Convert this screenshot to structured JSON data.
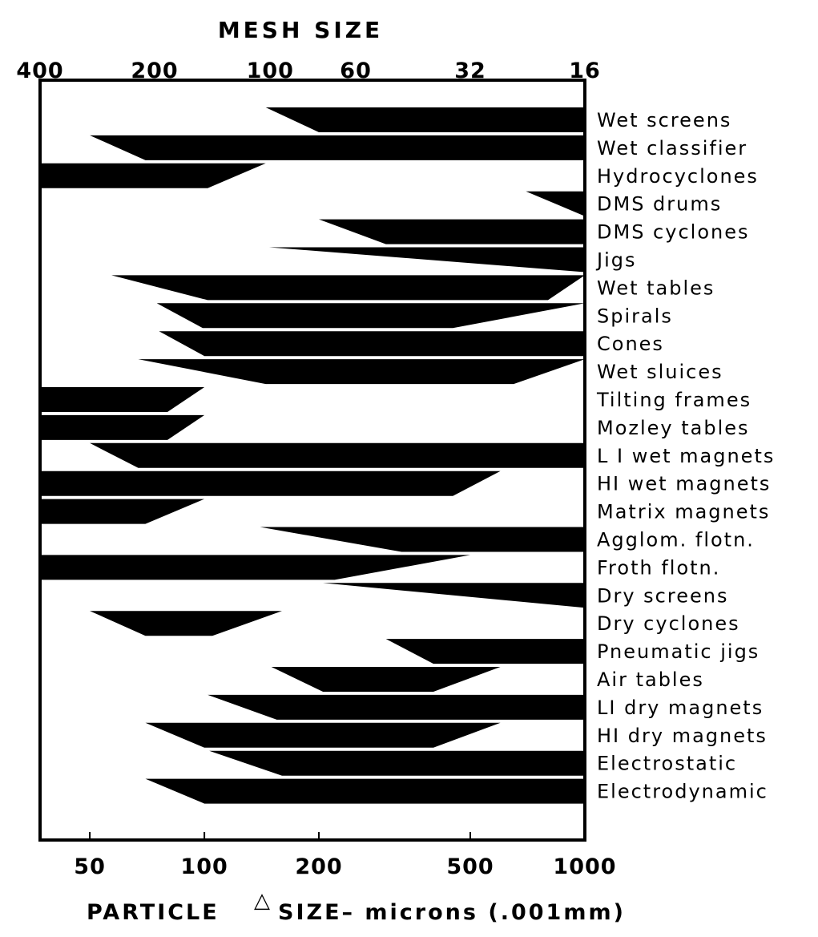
{
  "chart_data": {
    "type": "range-bar",
    "top_axis": {
      "title": "MESH SIZE",
      "tick_labels": [
        "400",
        "200",
        "100",
        "60",
        "32",
        "16"
      ],
      "tick_microns": [
        37,
        74,
        149,
        250,
        500,
        1000
      ]
    },
    "x_axis": {
      "title_before_symbol": "PARTICLE",
      "symbol": "△",
      "title_after_symbol": "SIZE– microns (.001mm)",
      "scale": "log",
      "range_microns": [
        37,
        1000
      ],
      "tick_labels": [
        "50",
        "100",
        "200",
        "500",
        "1000"
      ],
      "tick_values": [
        50,
        100,
        200,
        500,
        1000
      ]
    },
    "processes": [
      {
        "name": "Wet screens",
        "top": [
          145,
          1000
        ],
        "bottom": [
          200,
          1000
        ]
      },
      {
        "name": "Wet classifier",
        "top": [
          50,
          1000
        ],
        "bottom": [
          70,
          1000
        ]
      },
      {
        "name": "Hydrocyclones",
        "top": [
          37,
          145
        ],
        "bottom": [
          37,
          102
        ]
      },
      {
        "name": "DMS drums",
        "top": [
          700,
          1000
        ],
        "bottom": [
          1000,
          1000
        ]
      },
      {
        "name": "DMS cyclones",
        "top": [
          200,
          1000
        ],
        "bottom": [
          300,
          1000
        ]
      },
      {
        "name": "Jigs",
        "top": [
          148,
          1000
        ],
        "bottom": [
          1000,
          1000
        ]
      },
      {
        "name": "Wet tables",
        "top": [
          57,
          1000
        ],
        "bottom": [
          102,
          800
        ]
      },
      {
        "name": "Spirals",
        "top": [
          75,
          1000
        ],
        "bottom": [
          99,
          450
        ]
      },
      {
        "name": "Cones",
        "top": [
          76,
          1000
        ],
        "bottom": [
          100,
          1000
        ]
      },
      {
        "name": "Wet sluices",
        "top": [
          67,
          1000
        ],
        "bottom": [
          145,
          650
        ]
      },
      {
        "name": "Tilting frames",
        "top": [
          37,
          100
        ],
        "bottom": [
          37,
          80
        ]
      },
      {
        "name": "Mozley tables",
        "top": [
          37,
          100
        ],
        "bottom": [
          37,
          80
        ]
      },
      {
        "name": "LI wet magnets",
        "top": [
          50,
          1000
        ],
        "bottom": [
          67,
          1000
        ]
      },
      {
        "name": "HI wet magnets",
        "top": [
          37,
          600
        ],
        "bottom": [
          37,
          450
        ]
      },
      {
        "name": "Matrix magnets",
        "top": [
          37,
          100
        ],
        "bottom": [
          37,
          70
        ]
      },
      {
        "name": "Agglom. flotn.",
        "top": [
          140,
          1000
        ],
        "bottom": [
          330,
          1000
        ]
      },
      {
        "name": "Froth flotn.",
        "top": [
          37,
          500
        ],
        "bottom": [
          37,
          220
        ]
      },
      {
        "name": "Dry screens",
        "top": [
          205,
          1000
        ],
        "bottom": [
          1000,
          1000
        ]
      },
      {
        "name": "Dry cyclones",
        "top": [
          50,
          160
        ],
        "bottom": [
          70,
          105
        ]
      },
      {
        "name": "Pneumatic jigs",
        "top": [
          300,
          1000
        ],
        "bottom": [
          400,
          1000
        ]
      },
      {
        "name": "Air tables",
        "top": [
          150,
          600
        ],
        "bottom": [
          205,
          400
        ]
      },
      {
        "name": "LI dry magnets",
        "top": [
          102,
          1000
        ],
        "bottom": [
          155,
          1000
        ]
      },
      {
        "name": "HI dry magnets",
        "top": [
          70,
          600
        ],
        "bottom": [
          100,
          400
        ]
      },
      {
        "name": "Electrostatic",
        "top": [
          103,
          1000
        ],
        "bottom": [
          160,
          1000
        ]
      },
      {
        "name": "Electrodynamic",
        "top": [
          70,
          1000
        ],
        "bottom": [
          100,
          1000
        ]
      }
    ],
    "labels": [
      "Wet screens",
      "Wet classifier",
      "Hydrocyclones",
      "DMS drums",
      "DMS cyclones",
      "Jigs",
      "Wet tables",
      "Spirals",
      "Cones",
      "Wet sluices",
      "Tilting frames",
      "Mozley tables",
      "L I wet magnets",
      "HI wet magnets",
      "Matrix magnets",
      "Agglom. flotn.",
      "Froth flotn.",
      "Dry screens",
      "Dry cyclones",
      "Pneumatic jigs",
      "Air tables",
      "LI dry magnets",
      "HI dry magnets",
      "Electrostatic",
      "Electrodynamic"
    ],
    "grid": false,
    "colors": {
      "band": "#000000",
      "frame": "#000000",
      "background": "#ffffff"
    }
  }
}
